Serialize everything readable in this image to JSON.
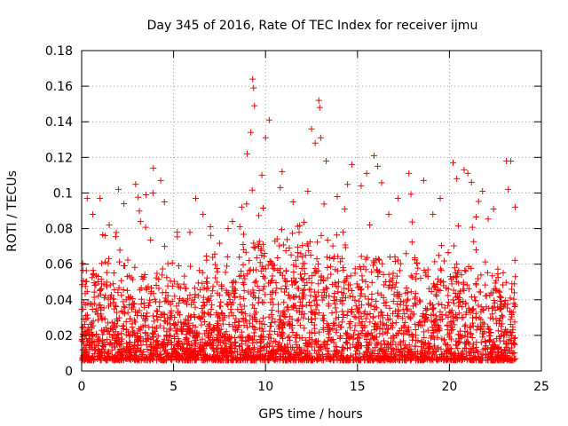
{
  "chart_data": {
    "type": "scatter",
    "title": "Day 345 of 2016, Rate Of TEC Index for receiver ijmu",
    "xlabel": "GPS time / hours",
    "ylabel": "ROTI / TECUs",
    "xlim": [
      0,
      25
    ],
    "ylim": [
      0,
      0.18
    ],
    "xticks": [
      0,
      5,
      10,
      15,
      20,
      25
    ],
    "xtick_labels": [
      "0",
      "5",
      "10",
      "15",
      "20",
      "25"
    ],
    "yticks": [
      0,
      0.02,
      0.04,
      0.06,
      0.08,
      0.1,
      0.12,
      0.14,
      0.16,
      0.18
    ],
    "ytick_labels": [
      "0",
      "0.02",
      "0.04",
      "0.06",
      "0.08",
      "0.1",
      "0.12",
      "0.14",
      "0.16",
      "0.18"
    ],
    "grid": true,
    "marker": "+",
    "color": "#ff0000",
    "series": [
      {
        "name": "ROTI",
        "x_range": [
          0,
          23.6
        ],
        "points": [
          [
            0.3,
            0.097
          ],
          [
            0.6,
            0.088
          ],
          [
            1.0,
            0.097
          ],
          [
            1.5,
            0.082
          ],
          [
            2.0,
            0.102
          ],
          [
            2.3,
            0.094
          ],
          [
            3.2,
            0.084
          ],
          [
            3.5,
            0.099
          ],
          [
            3.9,
            0.114
          ],
          [
            4.3,
            0.107
          ],
          [
            4.5,
            0.095
          ],
          [
            5.2,
            0.078
          ],
          [
            6.2,
            0.097
          ],
          [
            6.6,
            0.088
          ],
          [
            7.0,
            0.081
          ],
          [
            8.2,
            0.084
          ],
          [
            8.6,
            0.081
          ],
          [
            9.0,
            0.122
          ],
          [
            9.2,
            0.134
          ],
          [
            9.3,
            0.164
          ],
          [
            9.35,
            0.159
          ],
          [
            9.4,
            0.149
          ],
          [
            9.8,
            0.11
          ],
          [
            10.0,
            0.131
          ],
          [
            10.2,
            0.141
          ],
          [
            10.8,
            0.103
          ],
          [
            11.5,
            0.095
          ],
          [
            12.3,
            0.101
          ],
          [
            12.5,
            0.136
          ],
          [
            12.7,
            0.128
          ],
          [
            12.9,
            0.152
          ],
          [
            12.95,
            0.148
          ],
          [
            13.0,
            0.131
          ],
          [
            13.3,
            0.118
          ],
          [
            13.9,
            0.098
          ],
          [
            14.3,
            0.091
          ],
          [
            14.7,
            0.116
          ],
          [
            15.2,
            0.104
          ],
          [
            15.5,
            0.111
          ],
          [
            15.9,
            0.121
          ],
          [
            16.1,
            0.115
          ],
          [
            16.7,
            0.088
          ],
          [
            17.2,
            0.097
          ],
          [
            17.8,
            0.111
          ],
          [
            18.6,
            0.107
          ],
          [
            19.1,
            0.088
          ],
          [
            19.5,
            0.097
          ],
          [
            20.2,
            0.117
          ],
          [
            20.4,
            0.108
          ],
          [
            20.8,
            0.113
          ],
          [
            21.0,
            0.111
          ],
          [
            21.2,
            0.106
          ],
          [
            21.8,
            0.101
          ],
          [
            22.4,
            0.091
          ],
          [
            23.1,
            0.118
          ],
          [
            23.2,
            0.102
          ],
          [
            23.4,
            0.049
          ],
          [
            23.5,
            0.038
          ]
        ]
      }
    ]
  }
}
